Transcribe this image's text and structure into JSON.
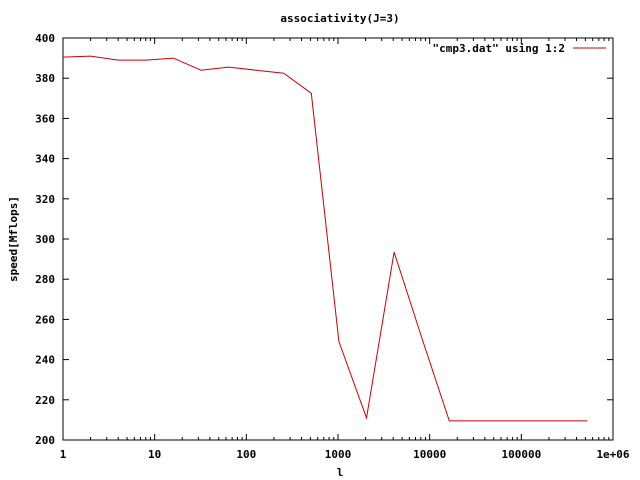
{
  "chart_data": {
    "type": "line",
    "title": "associativity(J=3)",
    "xlabel": "l",
    "ylabel": "speed[Mflops]",
    "xscale": "log",
    "xlim": [
      1,
      1000000
    ],
    "ylim": [
      200,
      400
    ],
    "grid": false,
    "legend_position": "top-right",
    "x_tick_labels": [
      "1",
      "10",
      "100",
      "1000",
      "10000",
      "100000",
      "1e+06"
    ],
    "x_ticks": [
      1,
      10,
      100,
      1000,
      10000,
      100000,
      1000000
    ],
    "y_ticks": [
      200,
      220,
      240,
      260,
      280,
      300,
      320,
      340,
      360,
      380,
      400
    ],
    "series": [
      {
        "name": "\"cmp3.dat\" using 1:2",
        "color": "#cc0000",
        "x": [
          1,
          2,
          4,
          8,
          16,
          32,
          64,
          128,
          256,
          512,
          1024,
          2048,
          4096,
          8192,
          16384,
          32768,
          65536,
          131072,
          262144,
          524288
        ],
        "y": [
          390.5,
          391,
          389,
          389,
          390,
          384,
          385.5,
          384,
          382.5,
          372.5,
          249,
          211,
          293.5,
          251,
          209.5,
          209.5,
          209.5,
          209.5,
          209.5,
          209.5
        ]
      }
    ]
  }
}
